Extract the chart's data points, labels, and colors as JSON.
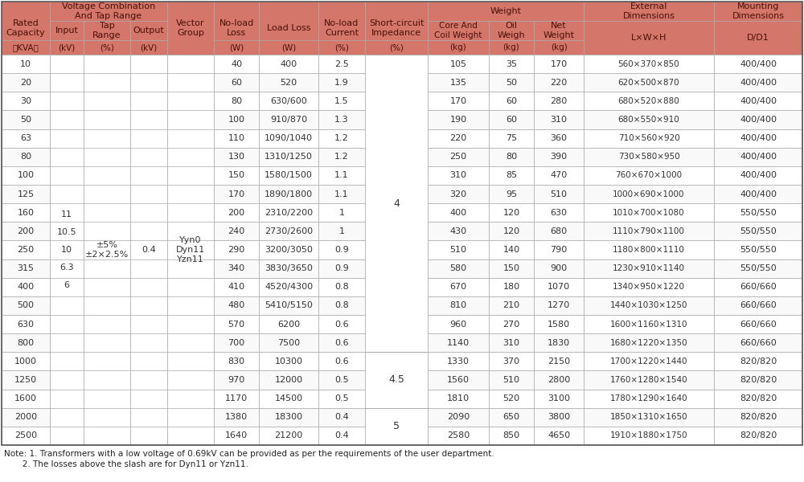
{
  "header_bg": "#d4776a",
  "header_text": "#4a0f08",
  "row_bg_even": "#ffffff",
  "row_bg_odd": "#f9f9f9",
  "border_color": "#aaaaaa",
  "data_text": "#333333",
  "note1": "Note: 1. Transformers with a low voltage of 0.69kV can be provided as per the requirements of the user department.",
  "note2": "       2. The losses above the slash are for Dyn11 or Yzn11.",
  "rows": [
    [
      "10",
      "40",
      "400",
      "2.5",
      "105",
      "35",
      "170",
      "560×370×850",
      "400/400"
    ],
    [
      "20",
      "60",
      "520",
      "1.9",
      "135",
      "50",
      "220",
      "620×500×870",
      "400/400"
    ],
    [
      "30",
      "80",
      "630/600",
      "1.5",
      "170",
      "60",
      "280",
      "680×520×880",
      "400/400"
    ],
    [
      "50",
      "100",
      "910/870",
      "1.3",
      "190",
      "60",
      "310",
      "680×550×910",
      "400/400"
    ],
    [
      "63",
      "110",
      "1090/1040",
      "1.2",
      "220",
      "75",
      "360",
      "710×560×920",
      "400/400"
    ],
    [
      "80",
      "130",
      "1310/1250",
      "1.2",
      "250",
      "80",
      "390",
      "730×580×950",
      "400/400"
    ],
    [
      "100",
      "150",
      "1580/1500",
      "1.1",
      "310",
      "85",
      "470",
      "760×670×1000",
      "400/400"
    ],
    [
      "125",
      "170",
      "1890/1800",
      "1.1",
      "320",
      "95",
      "510",
      "1000×690×1000",
      "400/400"
    ],
    [
      "160",
      "200",
      "2310/2200",
      "1",
      "400",
      "120",
      "630",
      "1010×700×1080",
      "550/550"
    ],
    [
      "200",
      "240",
      "2730/2600",
      "1",
      "430",
      "120",
      "680",
      "1110×790×1100",
      "550/550"
    ],
    [
      "250",
      "290",
      "3200/3050",
      "0.9",
      "510",
      "140",
      "790",
      "1180×800×1110",
      "550/550"
    ],
    [
      "315",
      "340",
      "3830/3650",
      "0.9",
      "580",
      "150",
      "900",
      "1230×910×1140",
      "550/550"
    ],
    [
      "400",
      "410",
      "4520/4300",
      "0.8",
      "670",
      "180",
      "1070",
      "1340×950×1220",
      "660/660"
    ],
    [
      "500",
      "480",
      "5410/5150",
      "0.8",
      "810",
      "210",
      "1270",
      "1440×1030×1250",
      "660/660"
    ],
    [
      "630",
      "570",
      "6200",
      "0.6",
      "960",
      "270",
      "1580",
      "1600×1160×1310",
      "660/660"
    ],
    [
      "800",
      "700",
      "7500",
      "0.6",
      "1140",
      "310",
      "1830",
      "1680×1220×1350",
      "660/660"
    ],
    [
      "1000",
      "830",
      "10300",
      "0.6",
      "1330",
      "370",
      "2150",
      "1700×1220×1440",
      "820/820"
    ],
    [
      "1250",
      "970",
      "12000",
      "0.5",
      "1560",
      "510",
      "2800",
      "1760×1280×1540",
      "820/820"
    ],
    [
      "1600",
      "1170",
      "14500",
      "0.5",
      "1810",
      "520",
      "3100",
      "1780×1290×1640",
      "820/820"
    ],
    [
      "2000",
      "1380",
      "18300",
      "0.4",
      "2090",
      "650",
      "3800",
      "1850×1310×1650",
      "820/820"
    ],
    [
      "2500",
      "1640",
      "21200",
      "0.4",
      "2580",
      "850",
      "4650",
      "1910×1880×1750",
      "820/820"
    ]
  ],
  "sc_impedance_groups": [
    [
      0,
      15,
      "4"
    ],
    [
      16,
      18,
      "4.5"
    ],
    [
      19,
      20,
      "5"
    ]
  ],
  "input_vals": [
    "6",
    "6.3",
    "10",
    "10.5",
    "11"
  ],
  "tap_range": "±5%\n±2×2.5%",
  "output_val": "0.4",
  "vector_group": "Yyn0\nDyn11\nYzn11"
}
